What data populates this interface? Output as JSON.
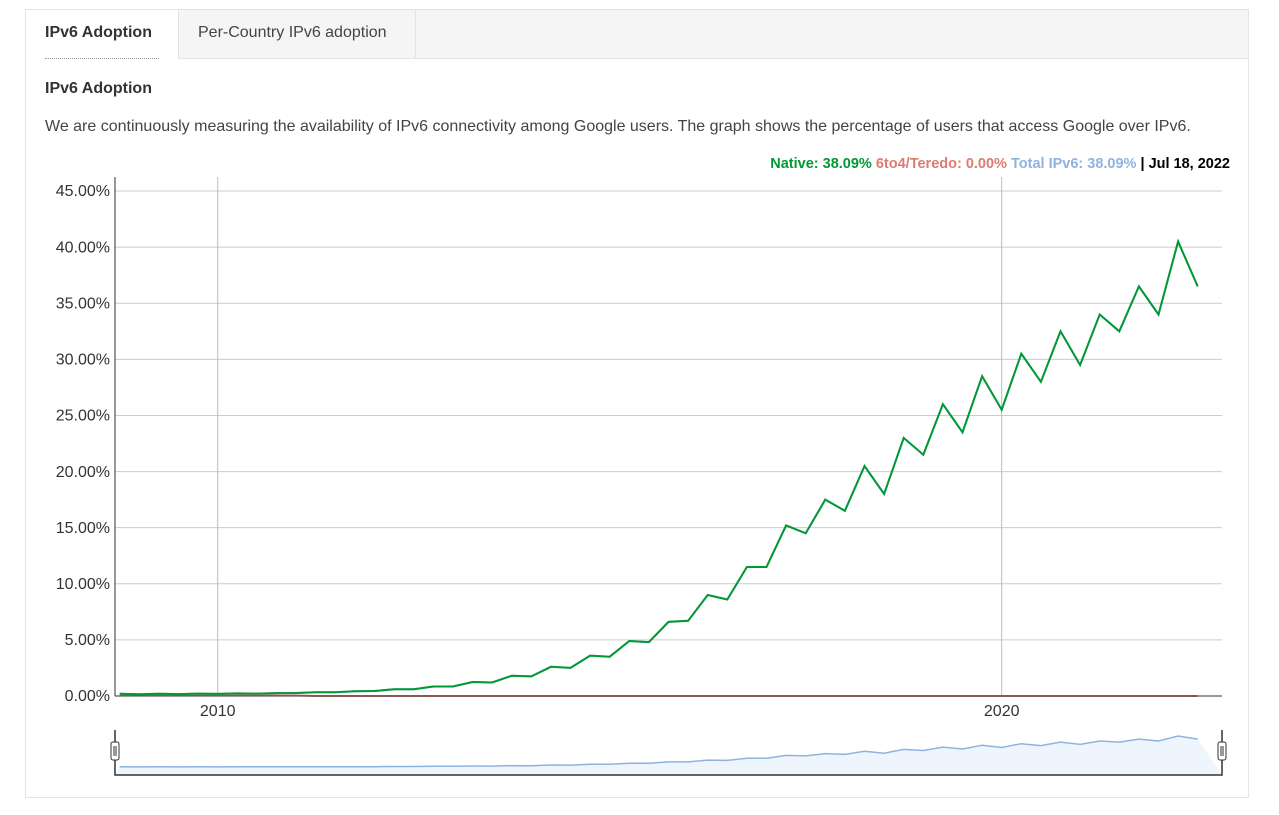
{
  "tabs": [
    "IPv6 Adoption",
    "Per-Country IPv6 adoption"
  ],
  "heading": "IPv6 Adoption",
  "description": "We are continuously measuring the availability of IPv6 connectivity among Google users. The graph shows the percentage of users that access Google over IPv6.",
  "chart_data": {
    "type": "line",
    "date_label": "Jul 18, 2022",
    "x": [
      2008.75,
      2009,
      2009.25,
      2009.5,
      2009.75,
      2010,
      2010.25,
      2010.5,
      2010.75,
      2011,
      2011.25,
      2011.5,
      2011.75,
      2012,
      2012.25,
      2012.5,
      2012.75,
      2013,
      2013.25,
      2013.5,
      2013.75,
      2014,
      2014.25,
      2014.5,
      2014.75,
      2015,
      2015.25,
      2015.5,
      2015.75,
      2016,
      2016.25,
      2016.5,
      2016.75,
      2017,
      2017.25,
      2017.5,
      2017.75,
      2018,
      2018.25,
      2018.5,
      2018.75,
      2019,
      2019.25,
      2019.5,
      2019.75,
      2020,
      2020.25,
      2020.5,
      2020.75,
      2021,
      2021.25,
      2021.5,
      2021.75,
      2022,
      2022.25,
      2022.5
    ],
    "xlim": [
      2008.69,
      2022.81
    ],
    "xticks": [
      2010,
      2020
    ],
    "ylim": [
      0,
      46.25
    ],
    "yticks": [
      {
        "value": 0,
        "label": "0.00%"
      },
      {
        "value": 5,
        "label": "5.00%"
      },
      {
        "value": 10,
        "label": "10.00%"
      },
      {
        "value": 15,
        "label": "15.00%"
      },
      {
        "value": 20,
        "label": "20.00%"
      },
      {
        "value": 25,
        "label": "25.00%"
      },
      {
        "value": 30,
        "label": "30.00%"
      },
      {
        "value": 35,
        "label": "35.00%"
      },
      {
        "value": 40,
        "label": "40.00%"
      },
      {
        "value": 45,
        "label": "45.00%"
      }
    ],
    "grid": true,
    "series": [
      {
        "name": "Native",
        "color": "#009933",
        "readout": "38.09%",
        "values": [
          0.2,
          0.16,
          0.2,
          0.17,
          0.21,
          0.19,
          0.23,
          0.21,
          0.26,
          0.27,
          0.34,
          0.33,
          0.42,
          0.45,
          0.6,
          0.6,
          0.85,
          0.85,
          1.25,
          1.2,
          1.8,
          1.75,
          2.6,
          2.5,
          3.6,
          3.5,
          4.9,
          4.8,
          6.6,
          6.7,
          9.0,
          8.6,
          11.5,
          11.5,
          15.2,
          14.5,
          17.5,
          16.5,
          20.5,
          18.0,
          23.0,
          21.5,
          26.0,
          23.5,
          28.5,
          25.5,
          30.5,
          28.0,
          32.5,
          29.5,
          34.0,
          32.5,
          36.5,
          34.0,
          40.5,
          36.5
        ]
      },
      {
        "name": "6to4/Teredo",
        "color": "#dd7b71",
        "readout": "0.00%",
        "values": [
          0.1,
          0.1,
          0.1,
          0.1,
          0.1,
          0.1,
          0.1,
          0.05,
          0.05,
          0.05,
          0,
          0,
          0,
          0,
          0,
          0,
          0,
          0,
          0,
          0,
          0,
          0,
          0,
          0,
          0,
          0,
          0,
          0,
          0,
          0,
          0,
          0,
          0,
          0,
          0,
          0,
          0,
          0,
          0,
          0,
          0,
          0,
          0,
          0,
          0,
          0,
          0,
          0,
          0,
          0,
          0,
          0,
          0,
          0,
          0,
          0
        ]
      },
      {
        "name": "Total IPv6",
        "color": "#8fb3e0",
        "readout": "38.09%",
        "values": [
          0.2,
          0.16,
          0.2,
          0.17,
          0.21,
          0.19,
          0.23,
          0.21,
          0.26,
          0.27,
          0.34,
          0.33,
          0.42,
          0.45,
          0.6,
          0.6,
          0.85,
          0.85,
          1.25,
          1.2,
          1.8,
          1.75,
          2.6,
          2.5,
          3.6,
          3.5,
          4.9,
          4.8,
          6.6,
          6.7,
          9.0,
          8.6,
          11.5,
          11.5,
          15.2,
          14.5,
          17.5,
          16.5,
          20.5,
          18.0,
          23.0,
          21.5,
          26.0,
          23.5,
          28.5,
          25.5,
          30.5,
          28.0,
          32.5,
          29.5,
          34.0,
          32.5,
          36.5,
          34.0,
          40.5,
          36.5
        ]
      }
    ]
  }
}
